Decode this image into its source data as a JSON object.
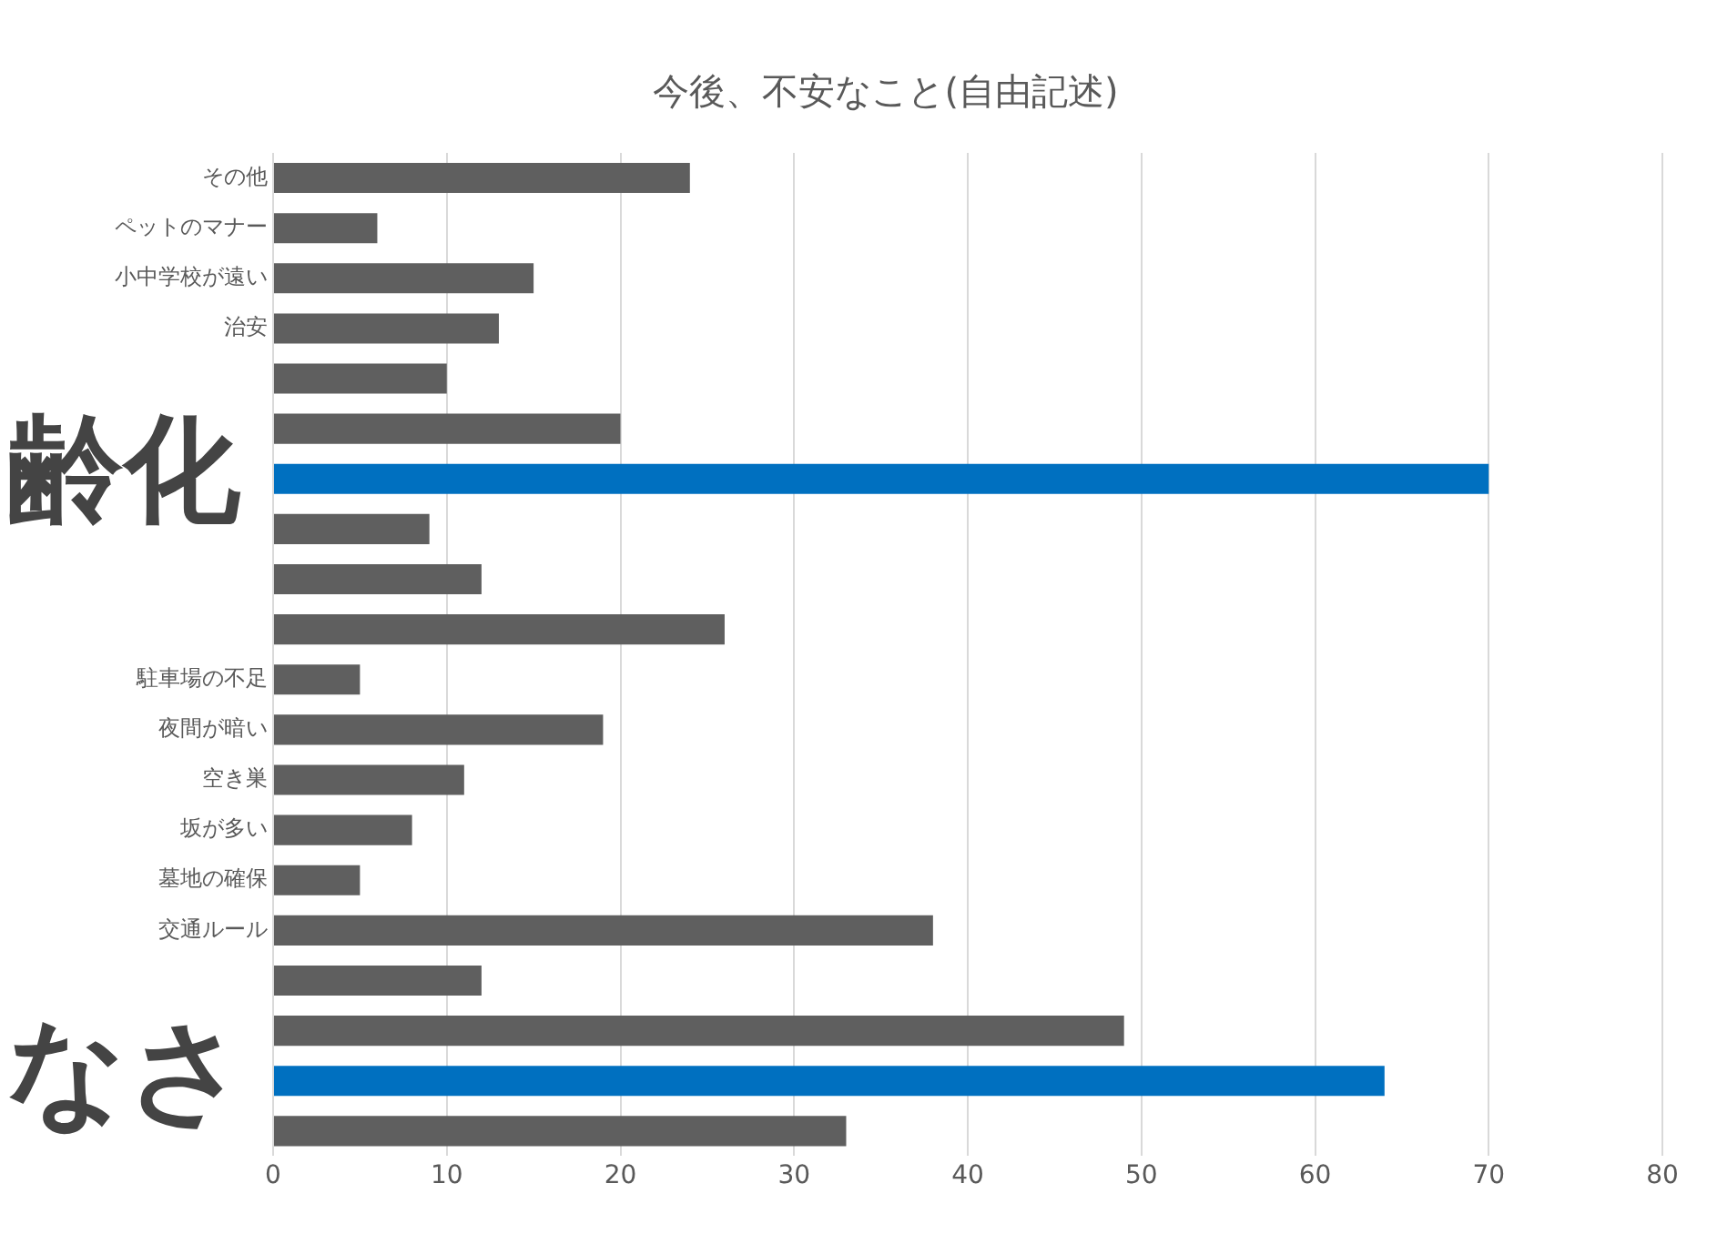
{
  "chart_data": {
    "type": "bar",
    "orientation": "horizontal",
    "title": "今後、不安なこと(自由記述)",
    "categories": [
      "その他",
      "ペットのマナー",
      "小中学校が遠い",
      "治安",
      null,
      null,
      null,
      null,
      null,
      null,
      "駐車場の不足",
      "夜間が暗い",
      "空き巣",
      "坂が多い",
      "墓地の確保",
      "交通ルール",
      null,
      null,
      null,
      null
    ],
    "values": [
      24,
      6,
      15,
      13,
      10,
      20,
      70,
      9,
      12,
      26,
      5,
      19,
      11,
      8,
      5,
      38,
      12,
      49,
      64,
      33
    ],
    "colors": [
      "#5f5f5f",
      "#5f5f5f",
      "#5f5f5f",
      "#5f5f5f",
      "#5f5f5f",
      "#5f5f5f",
      "#0070c0",
      "#5f5f5f",
      "#5f5f5f",
      "#5f5f5f",
      "#5f5f5f",
      "#5f5f5f",
      "#5f5f5f",
      "#5f5f5f",
      "#5f5f5f",
      "#5f5f5f",
      "#5f5f5f",
      "#5f5f5f",
      "#0070c0",
      "#5f5f5f"
    ],
    "xlim": [
      0,
      80
    ],
    "xticks": [
      0,
      10,
      20,
      30,
      40,
      50,
      60,
      70,
      80
    ],
    "grid": "x",
    "legend": false,
    "annotations": [
      "齢化",
      "なさ"
    ]
  }
}
